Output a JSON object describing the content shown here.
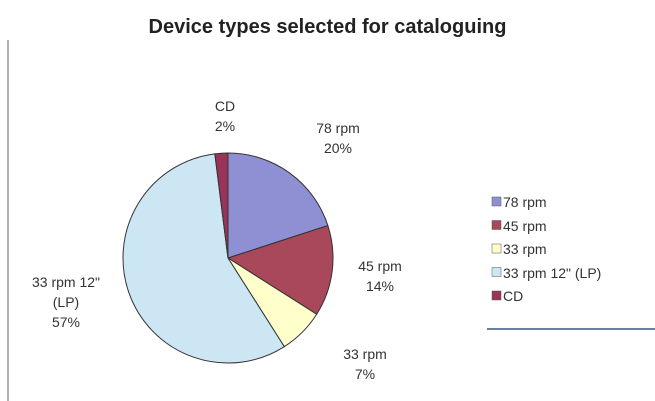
{
  "chart_data": {
    "type": "pie",
    "title": "Device types selected for cataloguing",
    "categories": [
      "78 rpm",
      "45 rpm",
      "33 rpm",
      "33 rpm 12\" (LP)",
      "CD"
    ],
    "values": [
      20,
      14,
      7,
      57,
      2
    ],
    "value_labels": [
      "20%",
      "14%",
      "7%",
      "57%",
      "2%"
    ],
    "colors": [
      "#8f90d4",
      "#a8485a",
      "#ffffcc",
      "#cce6f4",
      "#9a3358"
    ],
    "legend": "right"
  }
}
